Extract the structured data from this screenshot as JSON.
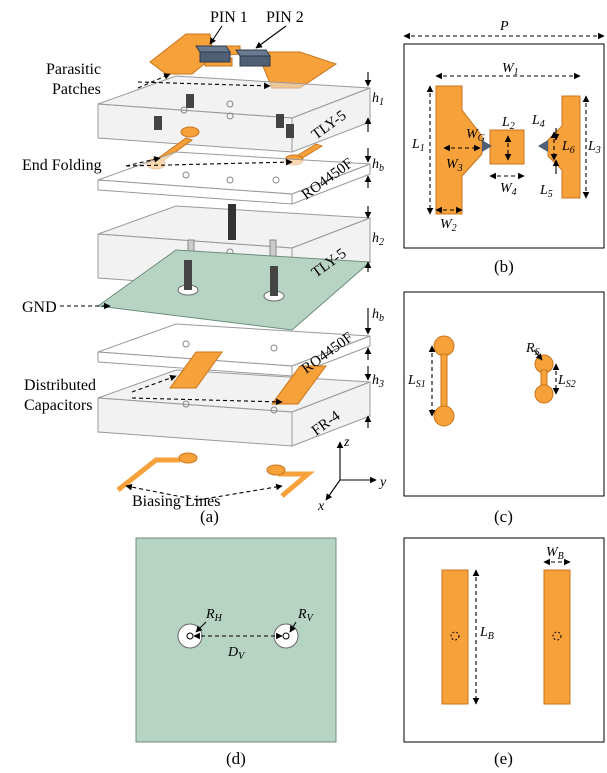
{
  "labels": {
    "pin1": "PIN 1",
    "pin2": "PIN 2",
    "parasitic_patches": "Parasitic\nPatches",
    "end_folding": "End Folding",
    "gnd": "GND",
    "distributed_capacitors": "Distributed\nCapacitors",
    "biasing_lines": "Biasing Lines"
  },
  "materials": {
    "tly5_top": "TLY-5",
    "ro4450f_top": "RO4450F",
    "tly5_mid": "TLY-5",
    "ro4450f_bot": "RO4450F",
    "fr4": "FR-4"
  },
  "heights": {
    "h1": {
      "main": "h",
      "sub": "1"
    },
    "hb1": {
      "main": "h",
      "sub": "b"
    },
    "h2": {
      "main": "h",
      "sub": "2"
    },
    "hb2": {
      "main": "h",
      "sub": "b"
    },
    "h3": {
      "main": "h",
      "sub": "3"
    }
  },
  "axes": {
    "z": "z",
    "y": "y",
    "x": "x"
  },
  "dims_b": {
    "P": "P",
    "W1": {
      "main": "W",
      "sub": "1"
    },
    "L1": {
      "main": "L",
      "sub": "1"
    },
    "W3": {
      "main": "W",
      "sub": "3"
    },
    "WG": {
      "main": "W",
      "sub": "G"
    },
    "L2": {
      "main": "L",
      "sub": "2"
    },
    "L4": {
      "main": "L",
      "sub": "4"
    },
    "L6": {
      "main": "L",
      "sub": "6"
    },
    "L3": {
      "main": "L",
      "sub": "3"
    },
    "W4": {
      "main": "W",
      "sub": "4"
    },
    "L5": {
      "main": "L",
      "sub": "5"
    },
    "W2": {
      "main": "W",
      "sub": "2"
    }
  },
  "dims_c": {
    "LS1": {
      "main": "L",
      "sub": "S1"
    },
    "RS": {
      "main": "R",
      "sub": "S"
    },
    "LS2": {
      "main": "L",
      "sub": "S2"
    }
  },
  "dims_d": {
    "RH": {
      "main": "R",
      "sub": "H"
    },
    "RV": {
      "main": "R",
      "sub": "V"
    },
    "DV": {
      "main": "D",
      "sub": "V"
    }
  },
  "dims_e": {
    "WB": {
      "main": "W",
      "sub": "B"
    },
    "LB": {
      "main": "L",
      "sub": "B"
    }
  },
  "captions": {
    "a": "(a)",
    "b": "(b)",
    "c": "(c)",
    "d": "(d)",
    "e": "(e)"
  },
  "colors": {
    "copper": "#f7a13b",
    "ground": "#b7d3c3",
    "pin": "#4f5f75",
    "via": "#4a4a4a"
  }
}
